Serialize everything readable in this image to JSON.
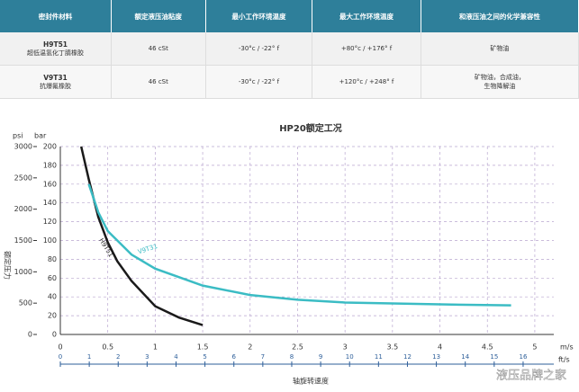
{
  "table": {
    "header": [
      "密封件材料",
      "额定液压油粘度",
      "最小工作环境温度",
      "最大工作环境温度",
      "和液压油之间的化学兼容性"
    ],
    "rows": [
      [
        [
          "H9T51",
          "超低温氢化丁腈橡胶"
        ],
        [
          "46 cSt"
        ],
        [
          "-30°c / -22° f"
        ],
        [
          "+80°c / +176° f"
        ],
        [
          "矿物油"
        ]
      ],
      [
        [
          "V9T31",
          "抗爆氟橡胶"
        ],
        [
          "46 cSt"
        ],
        [
          "-30°c / -22° f"
        ],
        [
          "+120°c / +248° f"
        ],
        [
          "矿物油，合成油，",
          "生物降解油"
        ]
      ]
    ]
  },
  "chart_data": {
    "type": "line",
    "title": "HP20额定工况",
    "x_label": "轴旋转速度",
    "y_label": "额定压力",
    "x_unit": "m/s",
    "x2_unit": "ft/s",
    "y_unit": "bar",
    "y2_unit": "psi",
    "xlim": [
      0,
      5.2
    ],
    "xticks": [
      0,
      0.5,
      1,
      1.5,
      2,
      2.5,
      3,
      3.5,
      4,
      4.5,
      5
    ],
    "x2lim": [
      0,
      17.06
    ],
    "x2ticks": [
      0,
      1,
      2,
      3,
      4,
      5,
      6,
      7,
      8,
      9,
      10,
      11,
      12,
      13,
      14,
      15,
      16
    ],
    "ylim": [
      0,
      200
    ],
    "yticks": [
      0,
      20,
      40,
      60,
      80,
      100,
      120,
      140,
      160,
      180,
      200
    ],
    "y2lim": [
      0,
      3000
    ],
    "y2ticks": [
      0,
      500,
      1000,
      1500,
      2000,
      2500,
      3000
    ],
    "grid": true,
    "series": [
      {
        "name": "H9T51",
        "color": "#1a1a1a",
        "x": [
          0.22,
          0.3,
          0.4,
          0.5,
          0.6,
          0.75,
          1.0,
          1.25,
          1.5
        ],
        "values": [
          200,
          165,
          125,
          98,
          78,
          57,
          30,
          18,
          10
        ]
      },
      {
        "name": "V9T31",
        "color": "#3bbcc4",
        "x": [
          0.3,
          0.4,
          0.5,
          0.75,
          1.0,
          1.5,
          2.0,
          2.5,
          3.0,
          4.0,
          4.75
        ],
        "values": [
          160,
          130,
          110,
          85,
          70,
          52,
          42,
          37,
          34,
          32,
          31
        ]
      }
    ]
  },
  "watermark": "液压品牌之家"
}
